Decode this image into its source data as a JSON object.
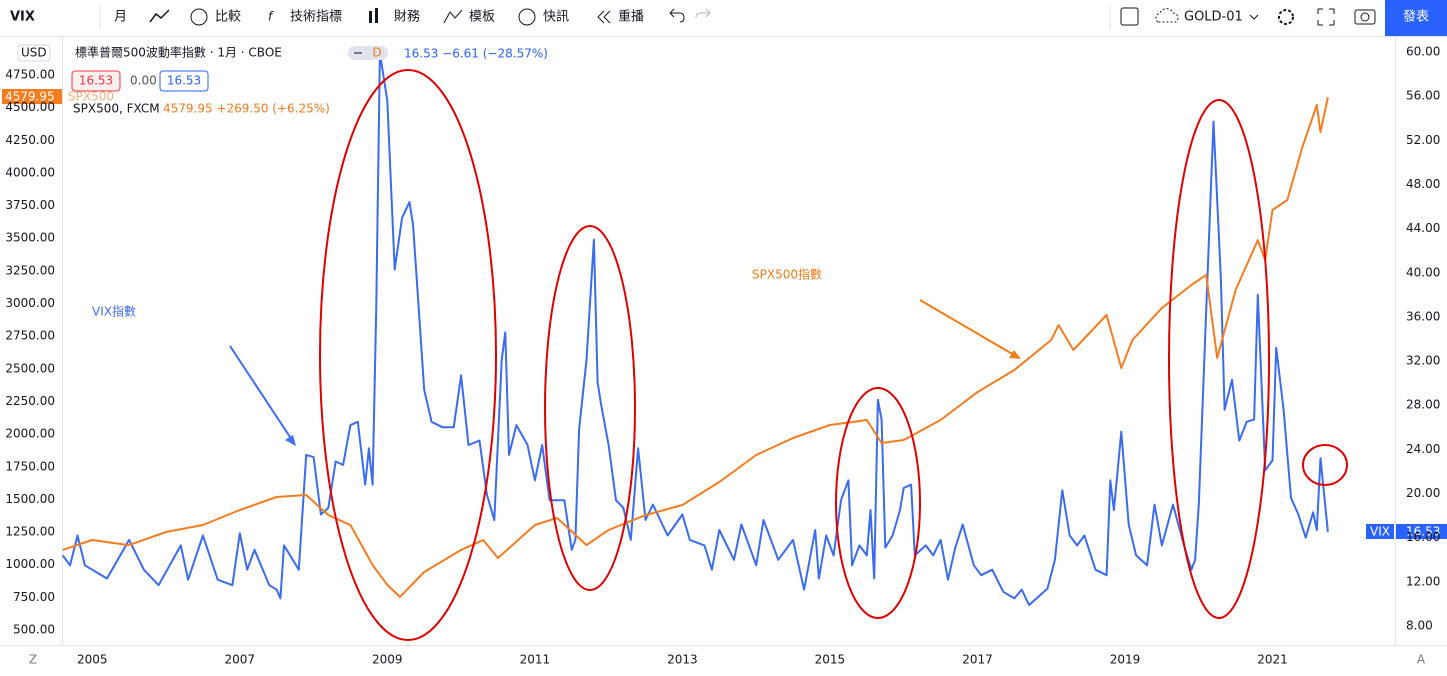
{
  "toolbar": {
    "symbol": "VIX",
    "interval": "月",
    "items": [
      "比較",
      "技術指標",
      "財務",
      "模板",
      "快訊",
      "重播"
    ],
    "layout": "GOLD-01",
    "publish": "發表"
  },
  "legend": {
    "title": "標準普爾500波動率指數 · 1月 · CBOE",
    "badge": "D",
    "change": "16.53 −6.61 (−28.57%)",
    "boxes": [
      "16.53",
      "0.00",
      "16.53"
    ],
    "sub": "SPX500, FXCM",
    "sub_change": "4579.95 +269.50 (+6.25%)",
    "currency": "USD",
    "spx_last": "4579.95",
    "vix_last": "16.53",
    "scale_left": "Z",
    "scale_right": "A"
  },
  "chart_data": {
    "type": "line",
    "annotations": [
      "VIX指數",
      "SPX500指數"
    ],
    "xlim": [
      2004.59,
      2022.66
    ],
    "xticks": [
      2005,
      2007,
      2009,
      2011,
      2013,
      2015,
      2017,
      2019,
      2021
    ],
    "ylim": [
      385,
      5041
    ],
    "yticks": [
      {
        "value": 500,
        "label": "500.00"
      },
      {
        "value": 750,
        "label": "750.00"
      },
      {
        "value": 1000,
        "label": "1000.00"
      },
      {
        "value": 1250,
        "label": "1250.00"
      },
      {
        "value": 1500,
        "label": "1500.00"
      },
      {
        "value": 1750,
        "label": "1750.00"
      },
      {
        "value": 2000,
        "label": "2000.00"
      },
      {
        "value": 2250,
        "label": "2250.00"
      },
      {
        "value": 2500,
        "label": "2500.00"
      },
      {
        "value": 2750,
        "label": "2750.00"
      },
      {
        "value": 3000,
        "label": "3000.00"
      },
      {
        "value": 3250,
        "label": "3250.00"
      },
      {
        "value": 3500,
        "label": "3500.00"
      },
      {
        "value": 3750,
        "label": "3750.00"
      },
      {
        "value": 4000,
        "label": "4000.00"
      },
      {
        "value": 4250,
        "label": "4250.00"
      },
      {
        "value": 4500,
        "label": "4500.00"
      },
      {
        "value": 4750,
        "label": "4750.00"
      }
    ],
    "y2lim": [
      6.28,
      61.36
    ],
    "y2ticks": [
      {
        "value": 8,
        "label": "8.00"
      },
      {
        "value": 12,
        "label": "12.00"
      },
      {
        "value": 16,
        "label": "16.00"
      },
      {
        "value": 20,
        "label": "20.00"
      },
      {
        "value": 24,
        "label": "24.00"
      },
      {
        "value": 28,
        "label": "28.00"
      },
      {
        "value": 32,
        "label": "32.00"
      },
      {
        "value": 36,
        "label": "36.00"
      },
      {
        "value": 40,
        "label": "40.00"
      },
      {
        "value": 44,
        "label": "44.00"
      },
      {
        "value": 48,
        "label": "48.00"
      },
      {
        "value": 52,
        "label": "52.00"
      },
      {
        "value": 56,
        "label": "56.00"
      },
      {
        "value": 60,
        "label": "60.00"
      }
    ],
    "grid": false,
    "series": [
      {
        "name": "VIX",
        "color": "#3a6cf0",
        "axis": "y2",
        "x": [
          2004.6,
          2004.7,
          2004.8,
          2004.9,
          2005.2,
          2005.5,
          2005.7,
          2005.9,
          2006.2,
          2006.3,
          2006.5,
          2006.7,
          2006.9,
          2007.0,
          2007.1,
          2007.2,
          2007.4,
          2007.5,
          2007.55,
          2007.6,
          2007.8,
          2007.9,
          2008.0,
          2008.1,
          2008.2,
          2008.3,
          2008.4,
          2008.5,
          2008.6,
          2008.7,
          2008.75,
          2008.8,
          2008.85,
          2008.9,
          2009.0,
          2009.1,
          2009.2,
          2009.3,
          2009.35,
          2009.5,
          2009.6,
          2009.75,
          2009.9,
          2010.0,
          2010.1,
          2010.25,
          2010.35,
          2010.45,
          2010.55,
          2010.6,
          2010.65,
          2010.75,
          2010.9,
          2011.0,
          2011.1,
          2011.2,
          2011.4,
          2011.5,
          2011.55,
          2011.6,
          2011.7,
          2011.8,
          2011.85,
          2011.9,
          2012.0,
          2012.1,
          2012.2,
          2012.3,
          2012.4,
          2012.5,
          2012.6,
          2012.8,
          2013.0,
          2013.1,
          2013.3,
          2013.4,
          2013.5,
          2013.7,
          2013.8,
          2014.0,
          2014.1,
          2014.3,
          2014.5,
          2014.65,
          2014.8,
          2014.85,
          2014.95,
          2015.05,
          2015.15,
          2015.25,
          2015.3,
          2015.4,
          2015.5,
          2015.55,
          2015.6,
          2015.65,
          2015.7,
          2015.75,
          2015.85,
          2015.95,
          2016.0,
          2016.1,
          2016.15,
          2016.3,
          2016.4,
          2016.5,
          2016.6,
          2016.7,
          2016.8,
          2016.95,
          2017.05,
          2017.2,
          2017.35,
          2017.5,
          2017.6,
          2017.7,
          2017.85,
          2017.95,
          2018.05,
          2018.15,
          2018.25,
          2018.35,
          2018.45,
          2018.6,
          2018.75,
          2018.8,
          2018.85,
          2018.95,
          2019.05,
          2019.15,
          2019.3,
          2019.4,
          2019.5,
          2019.65,
          2019.8,
          2019.9,
          2019.95,
          2020.0,
          2020.1,
          2020.2,
          2020.3,
          2020.35,
          2020.45,
          2020.55,
          2020.65,
          2020.75,
          2020.8,
          2020.9,
          2021.0,
          2021.05,
          2021.15,
          2021.25,
          2021.35,
          2021.45,
          2021.55,
          2021.6,
          2021.65,
          2021.75
        ],
        "values": [
          14.4,
          13.5,
          16.2,
          13.5,
          12.3,
          15.8,
          13.1,
          11.7,
          15.3,
          12.2,
          16.2,
          12.2,
          11.7,
          16.4,
          13.1,
          14.9,
          11.7,
          11.3,
          10.5,
          15.3,
          13.1,
          23.5,
          23.3,
          18.1,
          18.7,
          22.9,
          22.6,
          26.2,
          26.5,
          20.8,
          24.1,
          20.8,
          37.1,
          59.9,
          55.6,
          40.3,
          45.0,
          46.4,
          44.3,
          29.4,
          26.5,
          26.0,
          26.0,
          30.7,
          24.4,
          24.8,
          19.9,
          17.6,
          32.1,
          34.6,
          23.5,
          26.2,
          24.4,
          21.2,
          24.4,
          19.4,
          19.4,
          14.9,
          15.8,
          25.8,
          32.1,
          43.0,
          30.1,
          28.0,
          24.4,
          19.4,
          18.7,
          15.8,
          24.1,
          17.6,
          19.0,
          16.2,
          18.1,
          15.8,
          15.3,
          13.1,
          16.7,
          14.0,
          17.2,
          13.5,
          17.6,
          14.0,
          15.8,
          11.3,
          16.7,
          12.3,
          16.2,
          14.4,
          19.4,
          21.2,
          13.5,
          15.3,
          14.4,
          18.5,
          12.3,
          28.5,
          26.7,
          15.1,
          16.2,
          18.5,
          20.5,
          20.8,
          14.4,
          15.3,
          14.4,
          15.8,
          12.2,
          15.1,
          17.2,
          13.5,
          12.6,
          13.1,
          11.1,
          10.5,
          11.3,
          9.9,
          10.8,
          11.4,
          14.0,
          20.3,
          16.2,
          15.3,
          16.2,
          13.1,
          12.6,
          21.2,
          18.5,
          25.6,
          17.2,
          14.4,
          13.5,
          19.0,
          15.3,
          19.0,
          15.3,
          13.1,
          14.0,
          19.0,
          36.6,
          53.7,
          39.4,
          27.6,
          30.3,
          24.8,
          26.5,
          26.7,
          38.0,
          22.1,
          23.0,
          33.2,
          27.6,
          19.6,
          18.1,
          16.0,
          18.3,
          16.7,
          23.2,
          16.53
        ]
      },
      {
        "name": "SPX500",
        "color": "#f57c1f",
        "x": [
          2004.6,
          2005.0,
          2005.5,
          2006.0,
          2006.5,
          2007.0,
          2007.5,
          2007.9,
          2008.2,
          2008.5,
          2008.8,
          2009.0,
          2009.17,
          2009.5,
          2010.0,
          2010.3,
          2010.5,
          2011.0,
          2011.3,
          2011.7,
          2012.0,
          2012.5,
          2013.0,
          2013.5,
          2014.0,
          2014.5,
          2015.0,
          2015.5,
          2015.7,
          2016.0,
          2016.5,
          2017.0,
          2017.5,
          2018.0,
          2018.1,
          2018.3,
          2018.75,
          2018.95,
          2019.1,
          2019.5,
          2019.9,
          2020.1,
          2020.25,
          2020.5,
          2020.8,
          2020.9,
          2021.0,
          2021.2,
          2021.4,
          2021.6,
          2021.65,
          2021.75
        ],
        "values": [
          1113,
          1189,
          1150,
          1250,
          1304,
          1419,
          1518,
          1534,
          1380,
          1304,
          998,
          845,
          753,
          944,
          1113,
          1189,
          1051,
          1304,
          1358,
          1150,
          1266,
          1380,
          1457,
          1633,
          1840,
          1970,
          2070,
          2108,
          1932,
          1955,
          2108,
          2322,
          2491,
          2721,
          2835,
          2644,
          2912,
          2506,
          2721,
          2966,
          3142,
          3219,
          2583,
          3104,
          3486,
          3333,
          3716,
          3793,
          4191,
          4520,
          4313,
          4579.95
        ]
      }
    ]
  }
}
